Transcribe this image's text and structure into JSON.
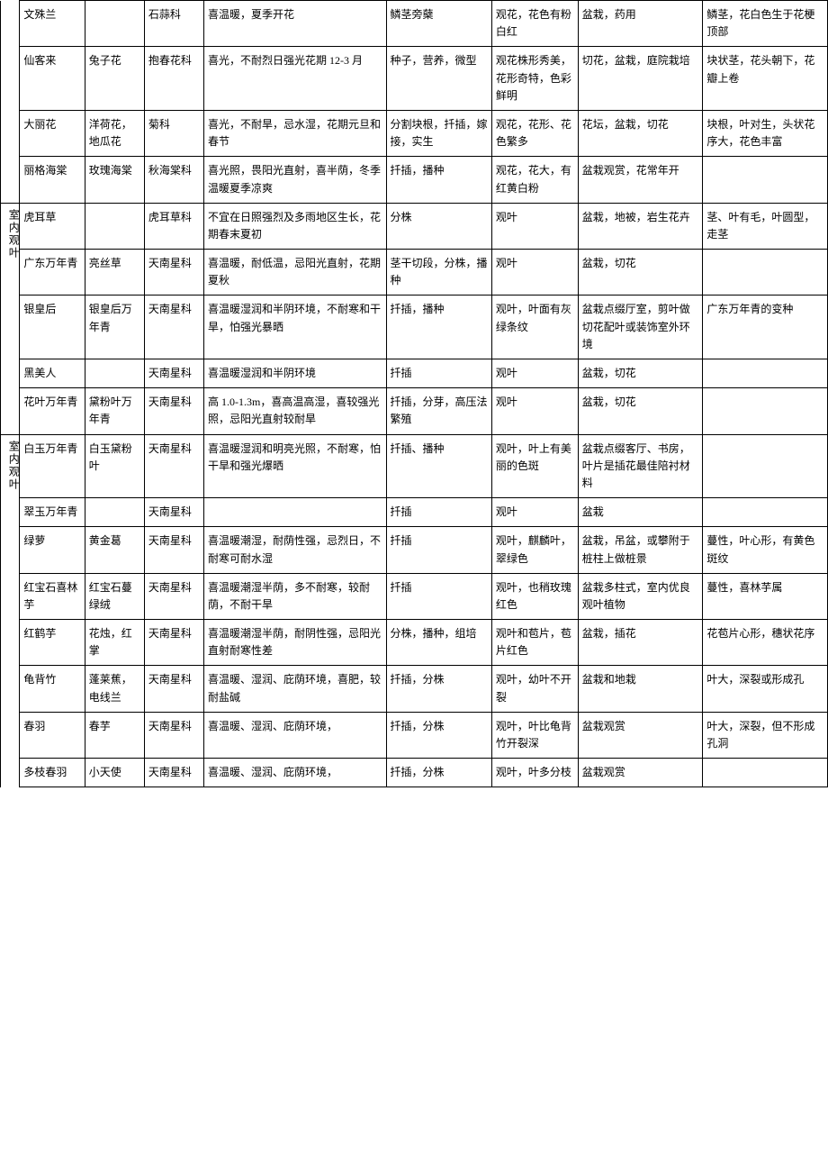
{
  "category1": "室内观叶",
  "category2": "室内观叶",
  "rows": [
    {
      "name": "文殊兰",
      "alias": "",
      "family": "石蒜科",
      "habit": "喜温暖，夏季开花",
      "propagate": "鳞茎旁蘖",
      "feature": "观花，花色有粉白红",
      "use": "盆栽，药用",
      "note": "鳞茎，花白色生于花梗顶部"
    },
    {
      "name": "仙客来",
      "alias": "兔子花",
      "family": "抱春花科",
      "habit": "喜光，不耐烈日强光花期 12-3 月",
      "propagate": "种子，营养，微型",
      "feature": "观花株形秀美，花形奇特，色彩鲜明",
      "use": "切花，盆栽，庭院栽培",
      "note": "块状茎，花头朝下，花瓣上卷"
    },
    {
      "name": "大丽花",
      "alias": "洋荷花，地瓜花",
      "family": "菊科",
      "habit": "喜光，不耐旱，忌水湿，花期元旦和春节",
      "propagate": "分割块根，扦插，嫁接，实生",
      "feature": "观花，花形、花色繁多",
      "use": "花坛，盆栽，切花",
      "note": "块根，叶对生，头状花序大，花色丰富"
    },
    {
      "name": "丽格海棠",
      "alias": "玫瑰海棠",
      "family": "秋海棠科",
      "habit": "喜光照，畏阳光直射，喜半荫，冬季温暖夏季凉爽",
      "propagate": "扦插，播种",
      "feature": "观花，花大，有红黄白粉",
      "use": "盆栽观赏，花常年开",
      "note": ""
    },
    {
      "name": "虎耳草",
      "alias": "",
      "family": "虎耳草科",
      "habit": "不宜在日照强烈及多雨地区生长，花期春末夏初",
      "propagate": "分株",
      "feature": "观叶",
      "use": "盆栽，地被，岩生花卉",
      "note": "茎、叶有毛，叶圆型，走茎"
    },
    {
      "name": "广东万年青",
      "alias": "亮丝草",
      "family": "天南星科",
      "habit": "喜温暖，耐低温，忌阳光直射，花期夏秋",
      "propagate": "茎干切段，分株，播种",
      "feature": "观叶",
      "use": "盆栽，切花",
      "note": ""
    },
    {
      "name": "银皇后",
      "alias": "银皇后万年青",
      "family": "天南星科",
      "habit": "喜温暖湿润和半阴环境，不耐寒和干旱，怕强光暴晒",
      "propagate": "扦插，播种",
      "feature": "观叶，叶面有灰绿条纹",
      "use": "盆栽点缀厅室，剪叶做切花配叶或装饰室外环境",
      "note": "广东万年青的变种"
    },
    {
      "name": "黑美人",
      "alias": "",
      "family": "天南星科",
      "habit": "喜温暖湿润和半阴环境",
      "propagate": "扦插",
      "feature": "观叶",
      "use": "盆栽，切花",
      "note": ""
    },
    {
      "name": "花叶万年青",
      "alias": "黛粉叶万年青",
      "family": "天南星科",
      "habit": "高 1.0-1.3m，喜高温高湿，喜较强光照，忌阳光直射较耐旱",
      "propagate": "扦插，分芽，高压法繁殖",
      "feature": "观叶",
      "use": "盆栽，切花",
      "note": ""
    },
    {
      "name": "白玉万年青",
      "alias": "白玉黛粉叶",
      "family": "天南星科",
      "habit": "喜温暖湿润和明亮光照，不耐寒，怕干旱和强光爆晒",
      "propagate": "扦插、播种",
      "feature": "观叶，叶上有美丽的色斑",
      "use": "盆栽点缀客厅、书房，叶片是插花最佳陪衬材料",
      "note": ""
    },
    {
      "name": "翠玉万年青",
      "alias": "",
      "family": "天南星科",
      "habit": "",
      "propagate": "扦插",
      "feature": "观叶",
      "use": "盆栽",
      "note": ""
    },
    {
      "name": "绿萝",
      "alias": "黄金葛",
      "family": "天南星科",
      "habit": "喜温暖潮湿，耐荫性强，忌烈日，不耐寒可耐水湿",
      "propagate": "扦插",
      "feature": "观叶，麒麟叶，翠绿色",
      "use": "盆栽，吊盆，或攀附于桩柱上做桩景",
      "note": "蔓性，叶心形，有黄色斑纹"
    },
    {
      "name": "红宝石喜林芋",
      "alias": "红宝石蔓绿绒",
      "family": "天南星科",
      "habit": "喜温暖潮湿半荫，多不耐寒，较耐荫，不耐干旱",
      "propagate": "扦插",
      "feature": "观叶，也稍玫瑰红色",
      "use": "盆栽多柱式，室内优良观叶植物",
      "note": "蔓性，喜林芋属"
    },
    {
      "name": "红鹤芋",
      "alias": "花烛，红掌",
      "family": "天南星科",
      "habit": "喜温暖潮湿半荫，耐阴性强，忌阳光直射耐寒性差",
      "propagate": "分株，播种，组培",
      "feature": "观叶和苞片，苞片红色",
      "use": "盆栽，插花",
      "note": "花苞片心形，穗状花序"
    },
    {
      "name": "龟背竹",
      "alias": "蓬莱蕉，电线兰",
      "family": "天南星科",
      "habit": "喜温暖、湿润、庇荫环境，喜肥，较耐盐碱",
      "propagate": "扦插，分株",
      "feature": "观叶，幼叶不开裂",
      "use": "盆栽和地栽",
      "note": "叶大，深裂或形成孔"
    },
    {
      "name": "春羽",
      "alias": "春芋",
      "family": "天南星科",
      "habit": "喜温暖、湿润、庇荫环境，",
      "propagate": "扦插，分株",
      "feature": "观叶，叶比龟背竹开裂深",
      "use": "盆栽观赏",
      "note": "叶大，深裂，但不形成孔洞"
    },
    {
      "name": "多枝春羽",
      "alias": "小天使",
      "family": "天南星科",
      "habit": "喜温暖、湿润、庇荫环境，",
      "propagate": "扦插，分株",
      "feature": "观叶，叶多分枝",
      "use": "盆栽观赏",
      "note": ""
    }
  ]
}
